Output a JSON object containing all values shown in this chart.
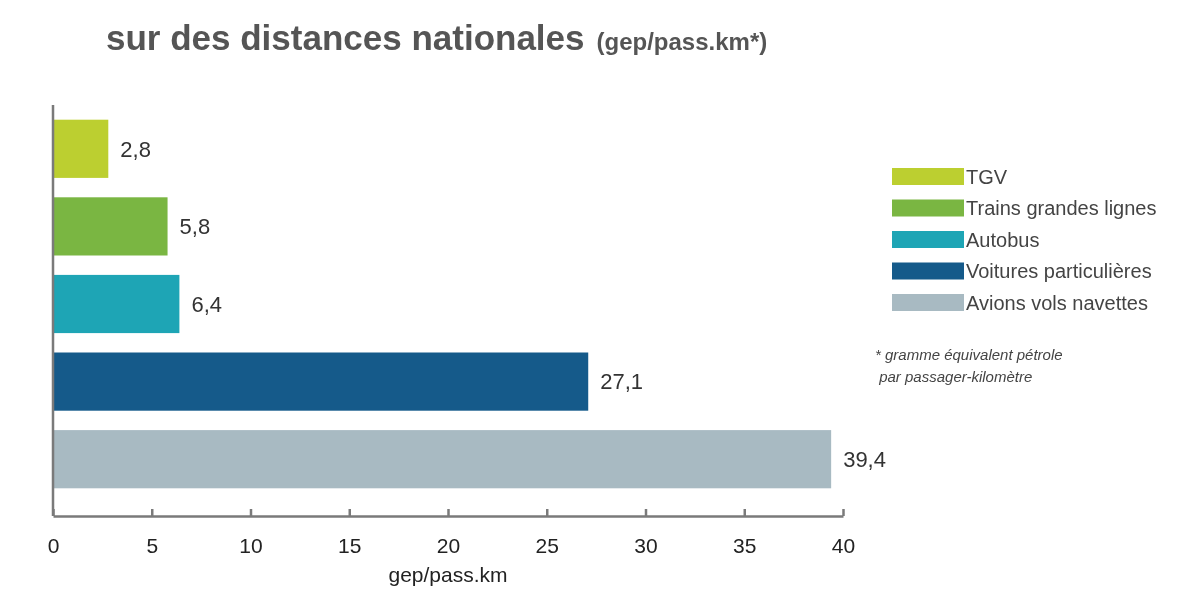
{
  "chart_data": {
    "type": "bar",
    "orientation": "horizontal",
    "stacked": true,
    "title": "sur des distances nationales",
    "subtitle": "(gep/pass.km*)",
    "xlabel": "gep/pass.km",
    "categories": [
      null,
      null,
      null,
      null,
      null
    ],
    "series": [
      {
        "name": "TGV",
        "color": "#bccf30",
        "values": [
          2.8,
          null,
          null,
          null,
          null
        ],
        "value_labels": [
          "2,8",
          null,
          null,
          null,
          null
        ]
      },
      {
        "name": "Trains grandes lignes",
        "color": "#7ab642",
        "values": [
          null,
          5.8,
          null,
          null,
          null
        ],
        "value_labels": [
          null,
          "5,8",
          null,
          null,
          null
        ]
      },
      {
        "name": "Autobus",
        "color": "#1ea5b5",
        "values": [
          null,
          null,
          6.4,
          null,
          null
        ],
        "value_labels": [
          null,
          null,
          "6,4",
          null,
          null
        ]
      },
      {
        "name": "Voitures particulières",
        "color": "#155a8a",
        "values": [
          null,
          null,
          null,
          27.1,
          null
        ],
        "value_labels": [
          null,
          null,
          null,
          "27,1",
          null
        ]
      },
      {
        "name": "Avions vols navettes",
        "color": "#a8bac2",
        "values": [
          null,
          null,
          null,
          null,
          39.4
        ],
        "value_labels": [
          null,
          null,
          null,
          null,
          "39,4"
        ]
      }
    ],
    "xlim": [
      0,
      40
    ],
    "xticks": [
      0,
      5,
      10,
      15,
      20,
      25,
      30,
      35,
      40
    ],
    "legend": "right",
    "annotations": [
      "* gramme équivalent pétrole\n par passager-kilomètre"
    ]
  }
}
